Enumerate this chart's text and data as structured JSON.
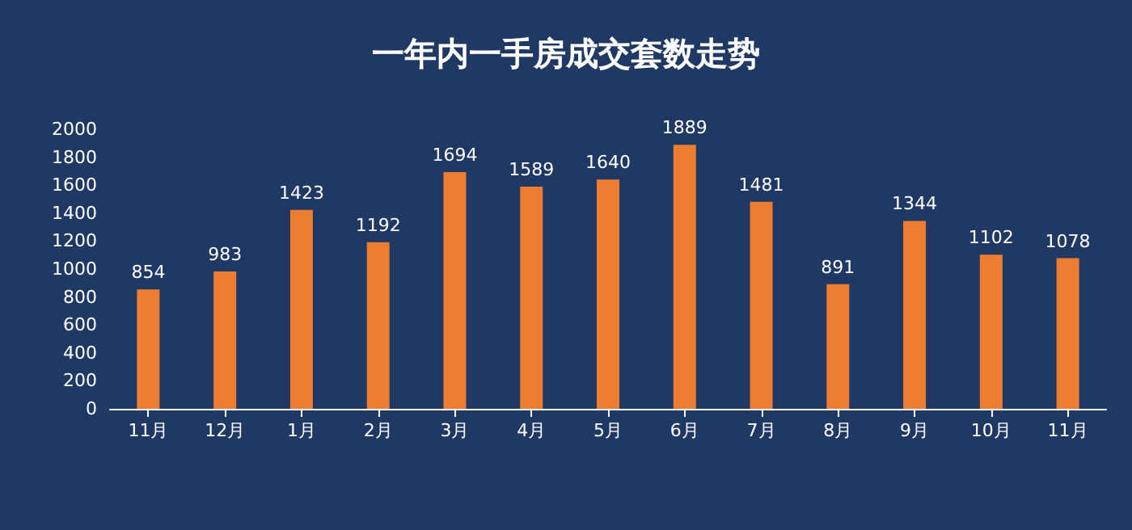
{
  "chart_data": {
    "type": "bar",
    "title": "一年内一手房成交套数走势",
    "categories": [
      "11月",
      "12月",
      "1月",
      "2月",
      "3月",
      "4月",
      "5月",
      "6月",
      "7月",
      "8月",
      "9月",
      "10月",
      "11月"
    ],
    "values": [
      854,
      983,
      1423,
      1192,
      1694,
      1589,
      1640,
      1889,
      1481,
      891,
      1344,
      1102,
      1078
    ],
    "color": "#ed7d31",
    "ylim": [
      0,
      2000
    ],
    "yticks": [
      0,
      200,
      400,
      600,
      800,
      1000,
      1200,
      1400,
      1600,
      1800,
      2000
    ],
    "grid": false,
    "data_labels": true
  }
}
